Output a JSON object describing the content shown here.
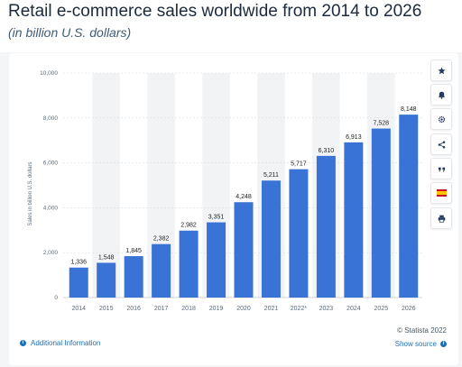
{
  "header": {
    "title": "Retail e-commerce sales worldwide from 2014 to 2026",
    "subtitle": "(in billion U.S. dollars)"
  },
  "chart_data": {
    "type": "bar",
    "categories": [
      "2014",
      "2015",
      "2016",
      "2017",
      "2018",
      "2019",
      "2020",
      "2021",
      "2022*",
      "2023",
      "2024",
      "2025",
      "2026"
    ],
    "values": [
      1336,
      1548,
      1845,
      2382,
      2982,
      3351,
      4248,
      5211,
      5717,
      6310,
      6913,
      7528,
      8148
    ],
    "value_labels": [
      "1,336",
      "1,548",
      "1,845",
      "2,382",
      "2,982",
      "3,351",
      "4,248",
      "5,211",
      "5,717",
      "6,310",
      "6,913",
      "7,528",
      "8,148"
    ],
    "ylabel": "Sales in billion U.S. dollars",
    "yticks": [
      0,
      2000,
      4000,
      6000,
      8000,
      10000
    ],
    "ytick_labels": [
      "0",
      "2,000",
      "4,000",
      "6,000",
      "8,000",
      "10,000"
    ],
    "ylim": [
      0,
      10000
    ],
    "bar_color": "#3a73d6",
    "grid": true
  },
  "toolbar": {
    "buttons": [
      {
        "name": "star-icon"
      },
      {
        "name": "bell-icon"
      },
      {
        "name": "gear-icon"
      },
      {
        "name": "share-icon"
      },
      {
        "name": "quote-icon"
      },
      {
        "name": "flag-icon"
      },
      {
        "name": "print-icon"
      }
    ]
  },
  "footer": {
    "info_label": "Additional Information",
    "copyright": "© Statista 2022",
    "source_label": "Show source"
  }
}
